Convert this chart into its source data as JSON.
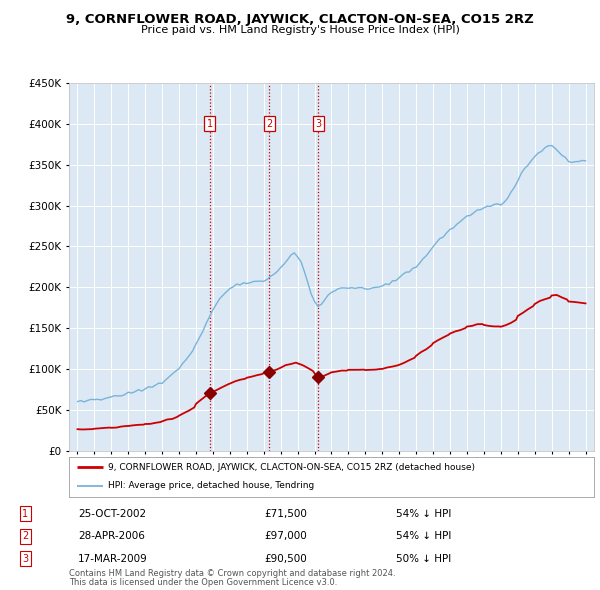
{
  "title": "9, CORNFLOWER ROAD, JAYWICK, CLACTON-ON-SEA, CO15 2RZ",
  "subtitle": "Price paid vs. HM Land Registry's House Price Index (HPI)",
  "transactions": [
    {
      "num": 1,
      "date": "25-OCT-2002",
      "date_x": 2002.81,
      "price": 71500,
      "pct": "54%"
    },
    {
      "num": 2,
      "date": "28-APR-2006",
      "date_x": 2006.32,
      "price": 97000,
      "pct": "54%"
    },
    {
      "num": 3,
      "date": "17-MAR-2009",
      "date_x": 2009.21,
      "price": 90500,
      "pct": "50%"
    }
  ],
  "hpi_color": "#7ab3d8",
  "price_color": "#cc0000",
  "plot_bg_color": "#dce9f5",
  "grid_color": "#ffffff",
  "legend_label_price": "9, CORNFLOWER ROAD, JAYWICK, CLACTON-ON-SEA, CO15 2RZ (detached house)",
  "legend_label_hpi": "HPI: Average price, detached house, Tendring",
  "footer_line1": "Contains HM Land Registry data © Crown copyright and database right 2024.",
  "footer_line2": "This data is licensed under the Open Government Licence v3.0.",
  "ylim": [
    0,
    450000
  ],
  "yticks": [
    0,
    50000,
    100000,
    150000,
    200000,
    250000,
    300000,
    350000,
    400000,
    450000
  ],
  "xlim_start": 1994.5,
  "xlim_end": 2025.5,
  "marker_color": "#880000",
  "vline_color": "#cc0000",
  "box_color": "#cc0000",
  "hpi_data": [
    [
      1995.0,
      62000
    ],
    [
      1995.2,
      61000
    ],
    [
      1995.4,
      60500
    ],
    [
      1995.6,
      61500
    ],
    [
      1995.8,
      62000
    ],
    [
      1996.0,
      63000
    ],
    [
      1996.2,
      63500
    ],
    [
      1996.4,
      64000
    ],
    [
      1996.6,
      65000
    ],
    [
      1996.8,
      65500
    ],
    [
      1997.0,
      66000
    ],
    [
      1997.2,
      67000
    ],
    [
      1997.4,
      68000
    ],
    [
      1997.6,
      69000
    ],
    [
      1997.8,
      70000
    ],
    [
      1998.0,
      71000
    ],
    [
      1998.2,
      72000
    ],
    [
      1998.4,
      73000
    ],
    [
      1998.6,
      74000
    ],
    [
      1998.8,
      75000
    ],
    [
      1999.0,
      76000
    ],
    [
      1999.2,
      77500
    ],
    [
      1999.4,
      79000
    ],
    [
      1999.6,
      80500
    ],
    [
      1999.8,
      82000
    ],
    [
      2000.0,
      84000
    ],
    [
      2000.2,
      87000
    ],
    [
      2000.4,
      90000
    ],
    [
      2000.6,
      94000
    ],
    [
      2000.8,
      98000
    ],
    [
      2001.0,
      102000
    ],
    [
      2001.2,
      107000
    ],
    [
      2001.4,
      112000
    ],
    [
      2001.6,
      117000
    ],
    [
      2001.8,
      123000
    ],
    [
      2002.0,
      130000
    ],
    [
      2002.2,
      138000
    ],
    [
      2002.4,
      147000
    ],
    [
      2002.6,
      156000
    ],
    [
      2002.8,
      165000
    ],
    [
      2003.0,
      173000
    ],
    [
      2003.2,
      180000
    ],
    [
      2003.4,
      186000
    ],
    [
      2003.6,
      191000
    ],
    [
      2003.8,
      195000
    ],
    [
      2004.0,
      198000
    ],
    [
      2004.2,
      201000
    ],
    [
      2004.4,
      203000
    ],
    [
      2004.6,
      204000
    ],
    [
      2004.8,
      205000
    ],
    [
      2005.0,
      205000
    ],
    [
      2005.2,
      206000
    ],
    [
      2005.4,
      207000
    ],
    [
      2005.6,
      207500
    ],
    [
      2005.8,
      208000
    ],
    [
      2006.0,
      209000
    ],
    [
      2006.2,
      211000
    ],
    [
      2006.4,
      213000
    ],
    [
      2006.6,
      216000
    ],
    [
      2006.8,
      219000
    ],
    [
      2007.0,
      223000
    ],
    [
      2007.2,
      228000
    ],
    [
      2007.4,
      235000
    ],
    [
      2007.6,
      240000
    ],
    [
      2007.8,
      242000
    ],
    [
      2008.0,
      238000
    ],
    [
      2008.2,
      230000
    ],
    [
      2008.4,
      218000
    ],
    [
      2008.6,
      205000
    ],
    [
      2008.8,
      192000
    ],
    [
      2009.0,
      182000
    ],
    [
      2009.2,
      178000
    ],
    [
      2009.4,
      180000
    ],
    [
      2009.6,
      185000
    ],
    [
      2009.8,
      190000
    ],
    [
      2010.0,
      194000
    ],
    [
      2010.2,
      197000
    ],
    [
      2010.4,
      199000
    ],
    [
      2010.6,
      200000
    ],
    [
      2010.8,
      200000
    ],
    [
      2011.0,
      200000
    ],
    [
      2011.2,
      200000
    ],
    [
      2011.4,
      199000
    ],
    [
      2011.6,
      199000
    ],
    [
      2011.8,
      199000
    ],
    [
      2012.0,
      198000
    ],
    [
      2012.2,
      198000
    ],
    [
      2012.4,
      198500
    ],
    [
      2012.6,
      199000
    ],
    [
      2012.8,
      200000
    ],
    [
      2013.0,
      201000
    ],
    [
      2013.2,
      203000
    ],
    [
      2013.4,
      205000
    ],
    [
      2013.6,
      207000
    ],
    [
      2013.8,
      209000
    ],
    [
      2014.0,
      212000
    ],
    [
      2014.2,
      215000
    ],
    [
      2014.4,
      218000
    ],
    [
      2014.6,
      220000
    ],
    [
      2014.8,
      223000
    ],
    [
      2015.0,
      226000
    ],
    [
      2015.2,
      230000
    ],
    [
      2015.4,
      234000
    ],
    [
      2015.6,
      239000
    ],
    [
      2015.8,
      244000
    ],
    [
      2016.0,
      249000
    ],
    [
      2016.2,
      254000
    ],
    [
      2016.4,
      259000
    ],
    [
      2016.6,
      263000
    ],
    [
      2016.8,
      267000
    ],
    [
      2017.0,
      271000
    ],
    [
      2017.2,
      274000
    ],
    [
      2017.4,
      277000
    ],
    [
      2017.6,
      280000
    ],
    [
      2017.8,
      283000
    ],
    [
      2018.0,
      286000
    ],
    [
      2018.2,
      289000
    ],
    [
      2018.4,
      292000
    ],
    [
      2018.6,
      294000
    ],
    [
      2018.8,
      296000
    ],
    [
      2019.0,
      298000
    ],
    [
      2019.2,
      299000
    ],
    [
      2019.4,
      300000
    ],
    [
      2019.6,
      300500
    ],
    [
      2019.8,
      301000
    ],
    [
      2020.0,
      302000
    ],
    [
      2020.2,
      304000
    ],
    [
      2020.4,
      308000
    ],
    [
      2020.6,
      315000
    ],
    [
      2020.8,
      323000
    ],
    [
      2021.0,
      331000
    ],
    [
      2021.2,
      338000
    ],
    [
      2021.4,
      344000
    ],
    [
      2021.6,
      350000
    ],
    [
      2021.8,
      355000
    ],
    [
      2022.0,
      359000
    ],
    [
      2022.2,
      363000
    ],
    [
      2022.4,
      367000
    ],
    [
      2022.6,
      370000
    ],
    [
      2022.8,
      372000
    ],
    [
      2023.0,
      373000
    ],
    [
      2023.2,
      371000
    ],
    [
      2023.4,
      367000
    ],
    [
      2023.6,
      362000
    ],
    [
      2023.8,
      358000
    ],
    [
      2024.0,
      355000
    ],
    [
      2024.2,
      354000
    ],
    [
      2024.4,
      354000
    ],
    [
      2024.6,
      355000
    ],
    [
      2024.8,
      356000
    ],
    [
      2025.0,
      356000
    ]
  ],
  "price_data": [
    [
      1995.0,
      27000
    ],
    [
      1995.3,
      26500
    ],
    [
      1995.6,
      27000
    ],
    [
      1995.9,
      27500
    ],
    [
      1996.0,
      27800
    ],
    [
      1996.3,
      28000
    ],
    [
      1996.6,
      28200
    ],
    [
      1996.9,
      28500
    ],
    [
      1997.0,
      29000
    ],
    [
      1997.3,
      29500
    ],
    [
      1997.6,
      30000
    ],
    [
      1997.9,
      30500
    ],
    [
      1998.0,
      31000
    ],
    [
      1998.3,
      31500
    ],
    [
      1998.6,
      32000
    ],
    [
      1998.9,
      32500
    ],
    [
      1999.0,
      33000
    ],
    [
      1999.3,
      34000
    ],
    [
      1999.6,
      35000
    ],
    [
      1999.9,
      36000
    ],
    [
      2000.0,
      37000
    ],
    [
      2000.3,
      38500
    ],
    [
      2000.6,
      40000
    ],
    [
      2000.9,
      42000
    ],
    [
      2001.0,
      44000
    ],
    [
      2001.3,
      47000
    ],
    [
      2001.6,
      50000
    ],
    [
      2001.9,
      54000
    ],
    [
      2002.0,
      58000
    ],
    [
      2002.3,
      63000
    ],
    [
      2002.6,
      68000
    ],
    [
      2002.81,
      71500
    ],
    [
      2003.0,
      73000
    ],
    [
      2003.3,
      76000
    ],
    [
      2003.6,
      79000
    ],
    [
      2003.9,
      82000
    ],
    [
      2004.0,
      83000
    ],
    [
      2004.3,
      85000
    ],
    [
      2004.6,
      87000
    ],
    [
      2004.9,
      89000
    ],
    [
      2005.0,
      90000
    ],
    [
      2005.3,
      91500
    ],
    [
      2005.6,
      93000
    ],
    [
      2005.9,
      94500
    ],
    [
      2006.0,
      95500
    ],
    [
      2006.32,
      97000
    ],
    [
      2006.5,
      98000
    ],
    [
      2006.8,
      100000
    ],
    [
      2007.0,
      102000
    ],
    [
      2007.3,
      105000
    ],
    [
      2007.6,
      107000
    ],
    [
      2007.9,
      108000
    ],
    [
      2008.0,
      107000
    ],
    [
      2008.3,
      105000
    ],
    [
      2008.6,
      102000
    ],
    [
      2008.9,
      98000
    ],
    [
      2009.0,
      95000
    ],
    [
      2009.21,
      90500
    ],
    [
      2009.5,
      92000
    ],
    [
      2009.8,
      94000
    ],
    [
      2010.0,
      96000
    ],
    [
      2010.3,
      97500
    ],
    [
      2010.6,
      98500
    ],
    [
      2010.9,
      99000
    ],
    [
      2011.0,
      99000
    ],
    [
      2011.3,
      99200
    ],
    [
      2011.6,
      99400
    ],
    [
      2011.9,
      99500
    ],
    [
      2012.0,
      99500
    ],
    [
      2012.3,
      99700
    ],
    [
      2012.6,
      100000
    ],
    [
      2012.9,
      100500
    ],
    [
      2013.0,
      101000
    ],
    [
      2013.3,
      102000
    ],
    [
      2013.6,
      103500
    ],
    [
      2013.9,
      105000
    ],
    [
      2014.0,
      106000
    ],
    [
      2014.3,
      108000
    ],
    [
      2014.6,
      111000
    ],
    [
      2014.9,
      114000
    ],
    [
      2015.0,
      117000
    ],
    [
      2015.3,
      121000
    ],
    [
      2015.6,
      125000
    ],
    [
      2015.9,
      129000
    ],
    [
      2016.0,
      132000
    ],
    [
      2016.3,
      136000
    ],
    [
      2016.6,
      139000
    ],
    [
      2016.9,
      142000
    ],
    [
      2017.0,
      144000
    ],
    [
      2017.3,
      146000
    ],
    [
      2017.6,
      148000
    ],
    [
      2017.9,
      150000
    ],
    [
      2018.0,
      152000
    ],
    [
      2018.3,
      153500
    ],
    [
      2018.6,
      155000
    ],
    [
      2018.9,
      155500
    ],
    [
      2019.0,
      154000
    ],
    [
      2019.3,
      153000
    ],
    [
      2019.6,
      152500
    ],
    [
      2019.9,
      152000
    ],
    [
      2020.0,
      152500
    ],
    [
      2020.3,
      154000
    ],
    [
      2020.6,
      157000
    ],
    [
      2020.9,
      161000
    ],
    [
      2021.0,
      165000
    ],
    [
      2021.3,
      169000
    ],
    [
      2021.6,
      173000
    ],
    [
      2021.9,
      177000
    ],
    [
      2022.0,
      180000
    ],
    [
      2022.3,
      183000
    ],
    [
      2022.6,
      186000
    ],
    [
      2022.9,
      188000
    ],
    [
      2023.0,
      190000
    ],
    [
      2023.3,
      191000
    ],
    [
      2023.6,
      188000
    ],
    [
      2023.9,
      185000
    ],
    [
      2024.0,
      183000
    ],
    [
      2024.3,
      182000
    ],
    [
      2024.6,
      181500
    ],
    [
      2024.9,
      181000
    ],
    [
      2025.0,
      181000
    ]
  ]
}
